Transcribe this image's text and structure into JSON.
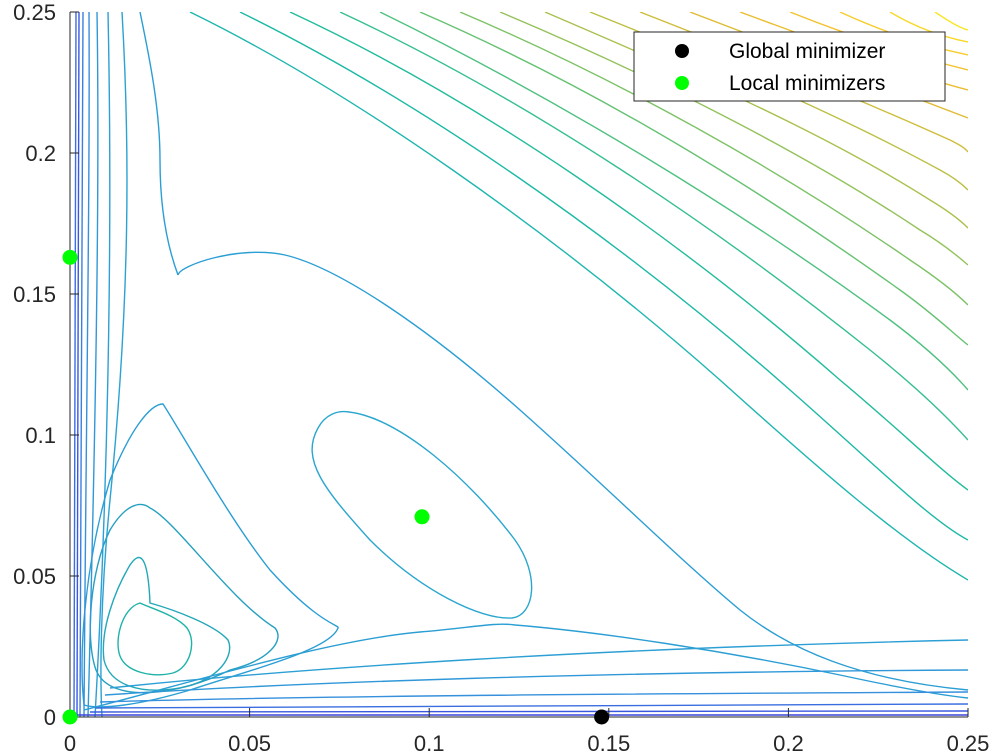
{
  "chart_data": {
    "type": "contour",
    "title": "",
    "xlabel": "",
    "ylabel": "",
    "xlim": [
      0,
      0.25
    ],
    "ylim": [
      0,
      0.25
    ],
    "x_ticks": [
      0,
      0.05,
      0.1,
      0.15,
      0.2,
      0.25
    ],
    "y_ticks": [
      0,
      0.05,
      0.1,
      0.15,
      0.2,
      0.25
    ],
    "x_tick_labels": [
      "0",
      "0.05",
      "0.1",
      "0.15",
      "0.2",
      "0.25"
    ],
    "y_tick_labels": [
      "0",
      "0.05",
      "0.1",
      "0.15",
      "0.2",
      "0.25"
    ],
    "grid": false,
    "colormap": "parula",
    "legend_position": "top-right",
    "series": [
      {
        "name": "Global minimizer",
        "color": "#000000",
        "points": [
          [
            0.148,
            0
          ]
        ]
      },
      {
        "name": "Local minimizers",
        "color": "#00ff00",
        "points": [
          [
            0,
            0.163
          ],
          [
            0,
            0
          ],
          [
            0.098,
            0.071
          ]
        ]
      }
    ]
  }
}
